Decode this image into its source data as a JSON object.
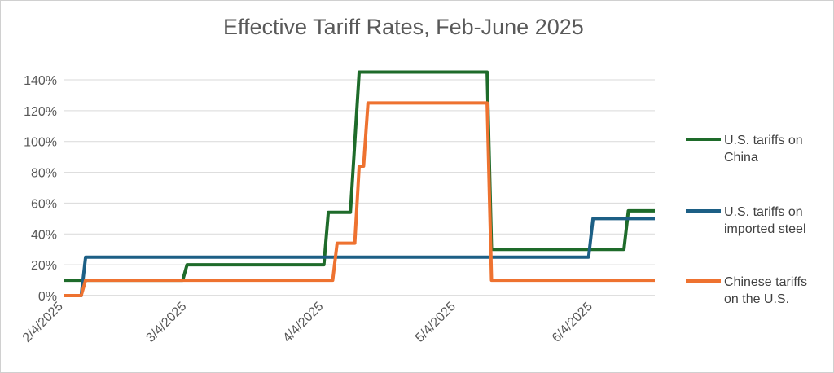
{
  "chart_data": {
    "type": "line",
    "title": "Effective Tariff Rates, Feb-June 2025",
    "xlabel": "",
    "ylabel": "",
    "xlim": [
      "2025-02-04",
      "2025-06-18"
    ],
    "ylim": [
      0,
      140
    ],
    "y_ticks": [
      0,
      20,
      40,
      60,
      80,
      100,
      120,
      140
    ],
    "y_tick_labels": [
      "0%",
      "20%",
      "40%",
      "60%",
      "80%",
      "100%",
      "120%",
      "140%"
    ],
    "x_ticks": [
      "2025-02-04",
      "2025-03-04",
      "2025-04-04",
      "2025-05-04",
      "2025-06-04"
    ],
    "x_tick_labels": [
      "2/4/2025",
      "3/4/2025",
      "4/4/2025",
      "5/4/2025",
      "6/4/2025"
    ],
    "grid": "horizontal",
    "legend_position": "right",
    "series": [
      {
        "name": "U.S. tariffs on China",
        "color": "#1e6b2a",
        "points": [
          [
            "2025-02-04",
            10
          ],
          [
            "2025-02-08",
            10
          ],
          [
            "2025-02-09",
            10
          ],
          [
            "2025-03-03",
            10
          ],
          [
            "2025-03-04",
            20
          ],
          [
            "2025-04-04",
            20
          ],
          [
            "2025-04-05",
            54
          ],
          [
            "2025-04-10",
            54
          ],
          [
            "2025-04-12",
            145
          ],
          [
            "2025-05-11",
            145
          ],
          [
            "2025-05-12",
            30
          ],
          [
            "2025-06-11",
            30
          ],
          [
            "2025-06-12",
            55
          ],
          [
            "2025-06-18",
            55
          ]
        ]
      },
      {
        "name": "U.S. tariffs on imported steel",
        "color": "#1c5f85",
        "points": [
          [
            "2025-02-04",
            0
          ],
          [
            "2025-02-08",
            0
          ],
          [
            "2025-02-09",
            25
          ],
          [
            "2025-06-03",
            25
          ],
          [
            "2025-06-04",
            50
          ],
          [
            "2025-06-18",
            50
          ]
        ]
      },
      {
        "name": "Chinese tariffs on the U.S.",
        "color": "#ee7230",
        "points": [
          [
            "2025-02-04",
            0
          ],
          [
            "2025-02-08",
            0
          ],
          [
            "2025-02-09",
            10
          ],
          [
            "2025-04-06",
            10
          ],
          [
            "2025-04-07",
            34
          ],
          [
            "2025-04-11",
            34
          ],
          [
            "2025-04-12",
            84
          ],
          [
            "2025-04-13",
            84
          ],
          [
            "2025-04-14",
            125
          ],
          [
            "2025-05-11",
            125
          ],
          [
            "2025-05-12",
            10
          ],
          [
            "2025-06-18",
            10
          ]
        ]
      }
    ]
  },
  "legend": {
    "items": [
      {
        "lines": [
          "U.S. tariffs on",
          "China"
        ],
        "color": "#1e6b2a"
      },
      {
        "lines": [
          "U.S. tariffs on",
          "imported steel"
        ],
        "color": "#1c5f85"
      },
      {
        "lines": [
          "Chinese tariffs",
          "on the U.S."
        ],
        "color": "#ee7230"
      }
    ]
  }
}
